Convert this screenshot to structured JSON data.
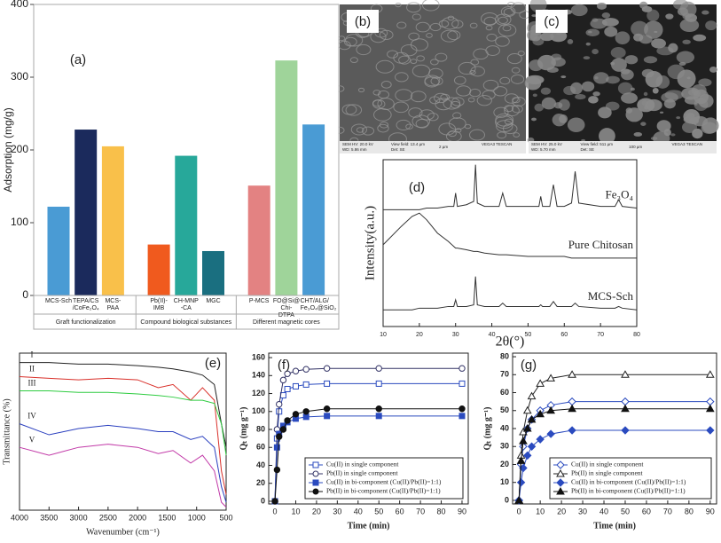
{
  "panels": {
    "b": {
      "label": "(b)",
      "info": [
        "SEM HV: 20.0 kV",
        "WD: 5.86 mm",
        "View field: 13.4 µm",
        "Det: SE",
        "2 µm",
        "VEGA3 TESCAN"
      ]
    },
    "c": {
      "label": "(c)",
      "info": [
        "SEM HV: 25.0 kV",
        "WD: 5.70 mm",
        "View field: 511 µm",
        "Det: SE",
        "100 µm",
        "VEGA3 TESCAN"
      ]
    }
  },
  "chart_data": [
    {
      "type": "bar",
      "label": "(a)",
      "y_label": "Adsorption (mg/g)",
      "categories": [
        "MCS-Sch",
        "TEPA/CS /CoFe₂O₄",
        "MCS-PAA",
        "Pb(II)-IMB",
        "CH-MNP -CA",
        "MGC",
        "P-MCS",
        "FO@Si@ Chi-DTPA",
        "CHT/ALG/ Fe₃O₄@SiO₂"
      ],
      "values": [
        122,
        228,
        205,
        70,
        192,
        61,
        151,
        323,
        235
      ],
      "colors": [
        "#4a9bd4",
        "#1b2a5c",
        "#f9c04a",
        "#f05a1e",
        "#27a89a",
        "#1a6f80",
        "#e38282",
        "#9fd49a",
        "#4a9bd4"
      ],
      "groups": [
        "Graft functionalization",
        "Compound biological substances",
        "Different magnetic cores"
      ],
      "ylim": [
        0,
        400
      ],
      "yticks": [
        0,
        100,
        200,
        300,
        400
      ]
    },
    {
      "type": "line",
      "label": "(d)",
      "x_label": "2θ(°)",
      "y_label": "Intensity(a.u.)",
      "series_labels": "end",
      "x": [
        10,
        15,
        18,
        20,
        22,
        25,
        28,
        29.5,
        30,
        30.5,
        33,
        35,
        35.5,
        36,
        38,
        42,
        43,
        44,
        50,
        53,
        53.5,
        54,
        56,
        57,
        58,
        60,
        62,
        63,
        64,
        70,
        74,
        75,
        76,
        80
      ],
      "series": [
        {
          "name": "Fe₃O₄",
          "color": "#333333",
          "values": [
            70,
            70,
            70,
            70,
            71,
            71,
            72,
            72,
            80,
            72,
            73,
            75,
            97,
            74,
            72,
            72,
            80,
            72,
            72,
            72,
            78,
            72,
            72,
            85,
            72,
            72,
            74,
            93,
            74,
            72,
            72,
            76,
            72,
            71
          ]
        },
        {
          "name": "Pure Chitosan",
          "color": "#333333",
          "values": [
            49,
            60,
            66,
            68,
            64,
            56,
            51,
            48,
            47,
            47,
            46,
            45,
            45,
            45,
            44,
            43,
            43,
            43,
            42,
            42,
            42,
            42,
            42,
            42,
            42,
            42,
            41,
            41,
            41,
            41,
            41,
            41,
            41,
            41
          ]
        },
        {
          "name": "MCS-Sch",
          "color": "#333333",
          "values": [
            10,
            10,
            10,
            11,
            11,
            11,
            12,
            12,
            16,
            12,
            12,
            13,
            30,
            13,
            12,
            12,
            14,
            12,
            12,
            12,
            13,
            12,
            12,
            15,
            12,
            12,
            12,
            14,
            12,
            11,
            11,
            12,
            11,
            10
          ]
        }
      ],
      "xlim": [
        10,
        80
      ],
      "xticks": [
        10,
        20,
        30,
        40,
        50,
        60,
        70,
        80
      ],
      "ylim": [
        0,
        100
      ]
    },
    {
      "type": "line",
      "label": "(e)",
      "x_label": "Wavenumber (cm⁻¹)",
      "y_label": "Transmittance (%)",
      "series_labels": "start",
      "x": [
        4000,
        3500,
        3000,
        2500,
        2000,
        1650,
        1400,
        1100,
        900,
        700,
        580,
        500
      ],
      "series": [
        {
          "name": "I",
          "color": "#222222",
          "values": [
            94,
            94,
            93,
            93,
            92,
            91,
            90,
            88,
            86,
            80,
            55,
            40
          ]
        },
        {
          "name": "II",
          "color": "#d9302a",
          "values": [
            85,
            84,
            83,
            84,
            83,
            78,
            80,
            70,
            78,
            70,
            25,
            10
          ]
        },
        {
          "name": "III",
          "color": "#2ecc40",
          "values": [
            76,
            76,
            75,
            75,
            74,
            73,
            72,
            70,
            70,
            68,
            55,
            35
          ]
        },
        {
          "name": "IV",
          "color": "#2a3fbf",
          "values": [
            55,
            48,
            52,
            54,
            52,
            50,
            50,
            45,
            47,
            40,
            15,
            5
          ]
        },
        {
          "name": "V",
          "color": "#c23aa8",
          "values": [
            40,
            35,
            40,
            42,
            40,
            36,
            38,
            30,
            35,
            25,
            5,
            2
          ]
        }
      ],
      "xlim": [
        4000,
        500
      ],
      "xticks": [
        4000,
        3500,
        3000,
        2500,
        2000,
        1500,
        1000,
        500
      ],
      "ylim": [
        0,
        100
      ]
    },
    {
      "type": "line",
      "label": "(f)",
      "x_label": "Time (min)",
      "y_label": "Qₜ (mg g⁻¹)",
      "legend": "lower right",
      "x": [
        0,
        1,
        2,
        4,
        6,
        10,
        15,
        25,
        50,
        90
      ],
      "series": [
        {
          "name": "Cu(II) in single component",
          "color": "#2b4bbf",
          "marker": "square",
          "filled": false,
          "values": [
            0,
            70,
            100,
            118,
            125,
            128,
            130,
            131,
            131,
            131
          ]
        },
        {
          "name": "Pb(II) in single component",
          "color": "#333366",
          "marker": "circle",
          "filled": false,
          "values": [
            0,
            80,
            108,
            135,
            142,
            145,
            147,
            148,
            148,
            148
          ]
        },
        {
          "name": "Cu(II) in bi-component (Cu(II)/Pb(II)=1:1)",
          "color": "#2b4bbf",
          "marker": "square",
          "filled": true,
          "values": [
            0,
            60,
            75,
            84,
            88,
            92,
            94,
            95,
            95,
            95
          ]
        },
        {
          "name": "Pb(II) in bi-component (Cu(II)/Pb(II)=1:1)",
          "color": "#111111",
          "marker": "circle",
          "filled": true,
          "values": [
            0,
            35,
            72,
            80,
            90,
            97,
            100,
            103,
            103,
            103
          ]
        }
      ],
      "xlim": [
        -3,
        93
      ],
      "xticks": [
        0,
        10,
        20,
        30,
        40,
        50,
        60,
        70,
        80,
        90
      ],
      "ylim": [
        -3,
        165
      ],
      "yticks": [
        0,
        20,
        40,
        60,
        80,
        100,
        120,
        140,
        160
      ]
    },
    {
      "type": "line",
      "label": "(g)",
      "x_label": "Time (min)",
      "y_label": "Qₜ (mg g⁻¹)",
      "legend": "lower right",
      "x": [
        0,
        1,
        2,
        4,
        6,
        10,
        15,
        25,
        50,
        90
      ],
      "series": [
        {
          "name": "Cu(II) in single component",
          "color": "#2b4bbf",
          "marker": "diamond",
          "filled": false,
          "values": [
            0,
            20,
            30,
            40,
            45,
            50,
            53,
            55,
            55,
            55
          ]
        },
        {
          "name": "Pb(II) in single component",
          "color": "#222222",
          "marker": "triangle",
          "filled": false,
          "values": [
            0,
            25,
            38,
            50,
            58,
            65,
            68,
            70,
            70,
            70
          ]
        },
        {
          "name": "Cu(II) in bi-component (Cu(II)/Pb(II)=1:1)",
          "color": "#2b4bbf",
          "marker": "diamond",
          "filled": true,
          "values": [
            0,
            10,
            18,
            25,
            30,
            34,
            37,
            39,
            39,
            39
          ]
        },
        {
          "name": "Pb(II) in bi-component (Cu(II)/Pb(II)=1:1)",
          "color": "#111111",
          "marker": "triangle",
          "filled": true,
          "values": [
            0,
            22,
            33,
            40,
            45,
            48,
            50,
            51,
            51,
            51
          ]
        }
      ],
      "xlim": [
        -3,
        93
      ],
      "xticks": [
        0,
        10,
        20,
        30,
        40,
        50,
        60,
        70,
        80,
        90
      ],
      "ylim": [
        -2,
        82
      ],
      "yticks": [
        0,
        10,
        20,
        30,
        40,
        50,
        60,
        70,
        80
      ]
    }
  ]
}
